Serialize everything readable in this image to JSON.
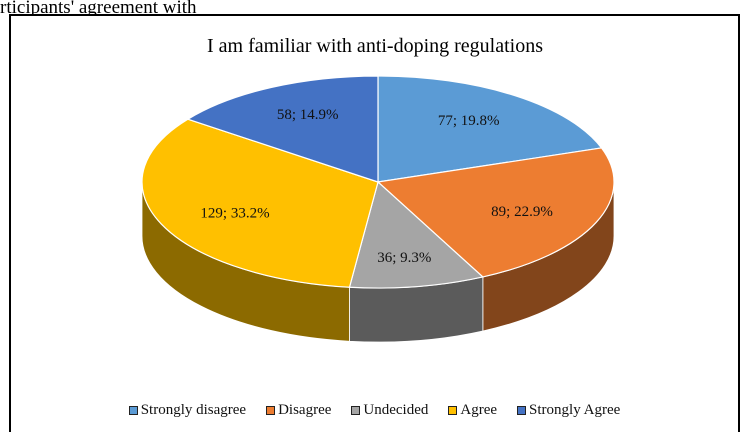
{
  "caption_fragment": "rticipants' agreement with",
  "chart_data": {
    "type": "pie",
    "style": "3d",
    "title": "I am familiar with anti-doping regulations",
    "slices": [
      {
        "name": "Strongly disagree",
        "value": 77,
        "percent": "19.8%",
        "label": "77; 19.8%",
        "color": "#5b9bd5"
      },
      {
        "name": "Disagree",
        "value": 89,
        "percent": "22.9%",
        "label": "89; 22.9%",
        "color": "#ed7d31"
      },
      {
        "name": "Undecided",
        "value": 36,
        "percent": "9.3%",
        "label": "36; 9.3%",
        "color": "#a5a5a5"
      },
      {
        "name": "Agree",
        "value": 129,
        "percent": "33.2%",
        "label": "129; 33.2%",
        "color": "#ffc000"
      },
      {
        "name": "Strongly Agree",
        "value": 58,
        "percent": "14.9%",
        "label": "58; 14.9%",
        "color": "#4472c4"
      }
    ],
    "legend_position": "bottom"
  }
}
